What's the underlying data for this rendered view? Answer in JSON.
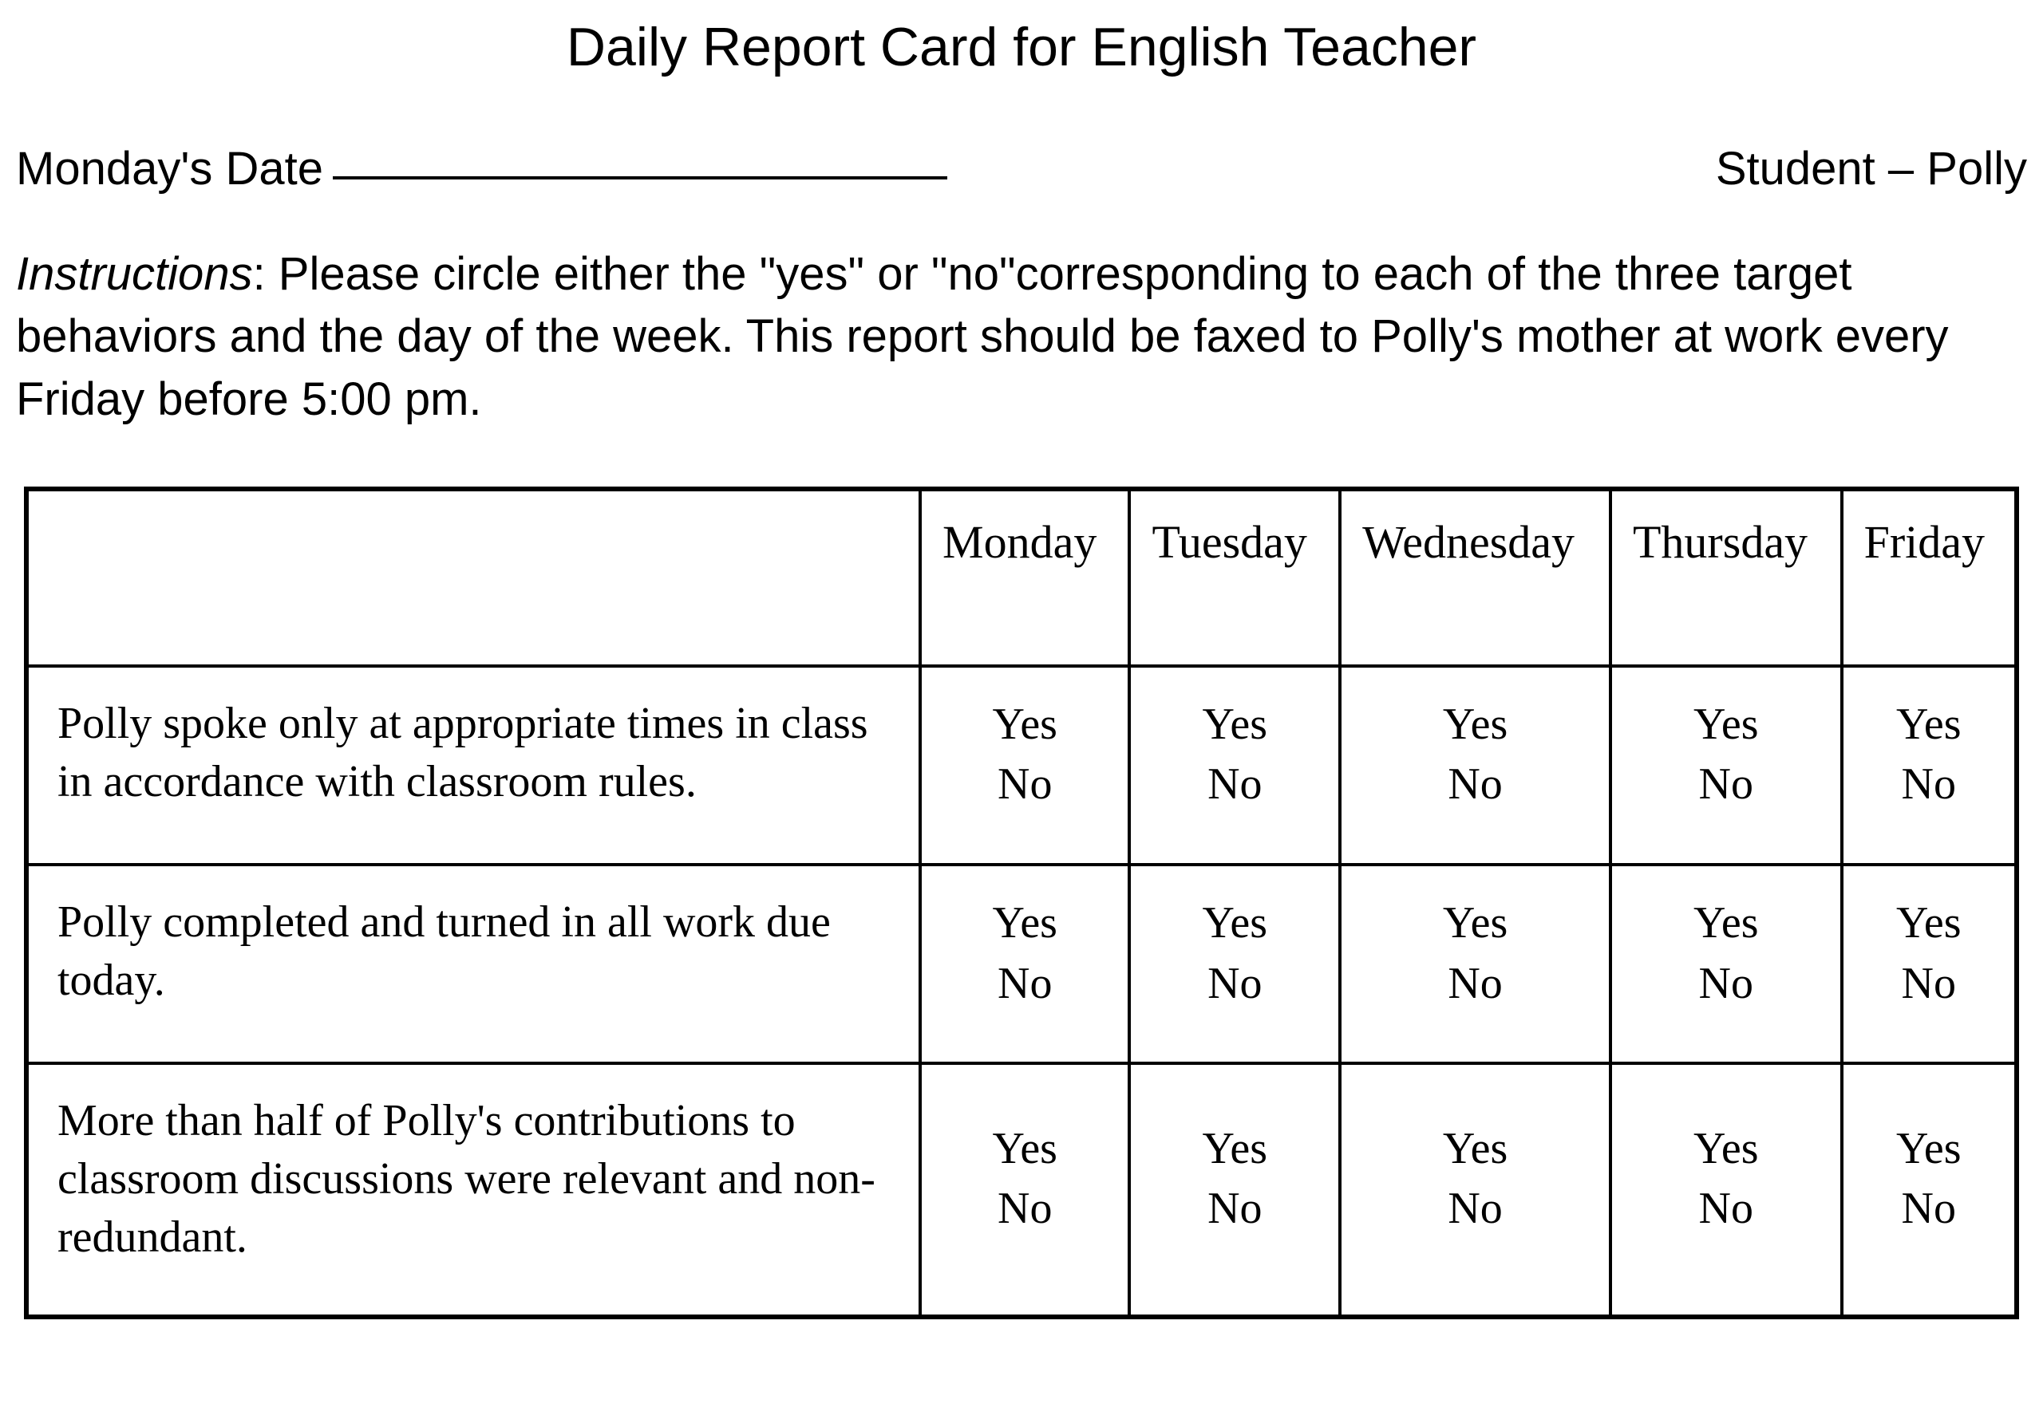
{
  "title": "Daily Report Card for English Teacher",
  "header": {
    "date_label": "Monday's Date",
    "student_label": "Student – Polly"
  },
  "instructions": {
    "label": "Instructions",
    "text": ": Please circle either the \"yes\" or \"no\"corresponding to each of the three target behaviors and the day of the week. This report should be faxed to Polly's mother at work every Friday before 5:00 pm."
  },
  "table": {
    "columns": [
      "Monday",
      "Tuesday",
      "Wednesday",
      "Thursday",
      "Friday"
    ],
    "yes_label": "Yes",
    "no_label": "No",
    "behaviors": [
      "Polly spoke only at appropriate times in class in accordance with classroom rules.",
      "Polly completed and turned in all work due today.",
      "More than half of Polly's contributions to classroom discussions were relevant and non-redundant."
    ]
  },
  "style": {
    "background_color": "#ffffff",
    "text_color": "#000000",
    "border_color": "#000000",
    "title_fontsize": 68,
    "body_fontsize": 58,
    "table_fontsize": 56,
    "title_font": "Arial",
    "table_font": "Times New Roman",
    "outer_border_width": 6,
    "inner_border_width": 4
  }
}
